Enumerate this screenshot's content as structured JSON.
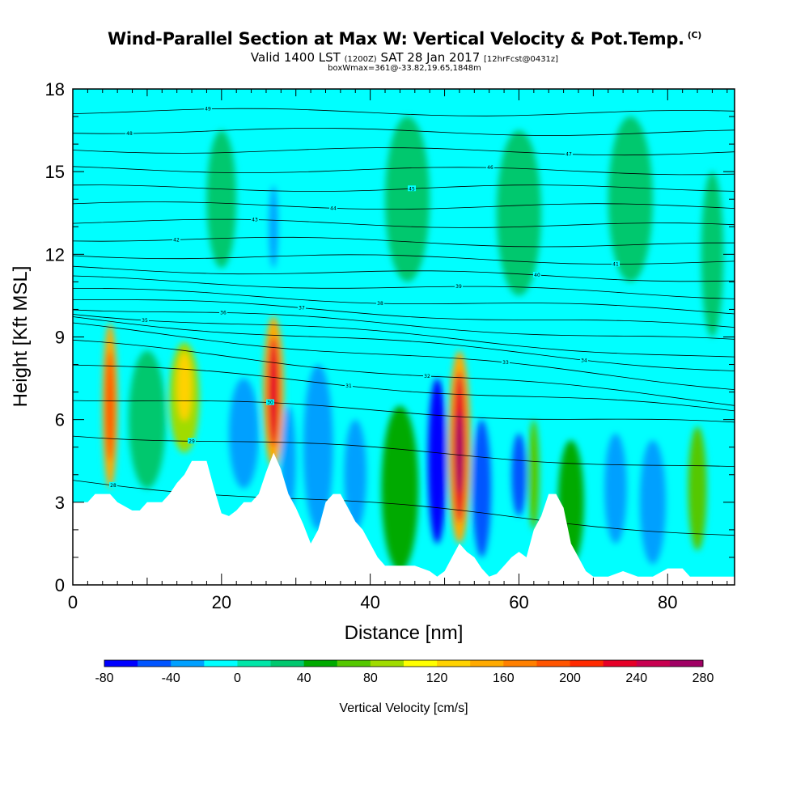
{
  "header": {
    "title": "Wind-Parallel Section at Max W: Vertical Velocity & Pot.Temp.",
    "copyright": "(C)",
    "valid_prefix": "Valid 1400 LST",
    "valid_z": "(1200Z)",
    "valid_date": "SAT 28 Jan 2017",
    "valid_fcst": "[12hrFcst@0431z]",
    "box_line": "boxWmax=361@-33.82,19.65,1848m"
  },
  "chart_data": {
    "type": "heatmap",
    "title": "Wind-Parallel Section at Max W: Vertical Velocity & Pot.Temp.",
    "xlabel": "Distance [nm]",
    "ylabel": "Height [Kft MSL]",
    "xlim": [
      0,
      89
    ],
    "ylim": [
      0,
      18
    ],
    "x_ticks": [
      "0",
      "20",
      "40",
      "60",
      "80"
    ],
    "y_ticks": [
      "0",
      "3",
      "6",
      "9",
      "12",
      "15",
      "18"
    ],
    "colorbar": {
      "label": "Vertical Velocity [cm/s]",
      "tick_labels": [
        "-80",
        "-40",
        "0",
        "40",
        "80",
        "120",
        "160",
        "200",
        "240",
        "280"
      ],
      "levels": [
        -80,
        -60,
        -40,
        -20,
        0,
        20,
        40,
        60,
        80,
        100,
        120,
        140,
        160,
        180,
        200,
        220,
        240,
        260,
        280
      ],
      "colors": [
        "#0000ff",
        "#0055ff",
        "#00a0ff",
        "#00ffff",
        "#00e6a8",
        "#00c86e",
        "#00aa00",
        "#55c800",
        "#a0dc00",
        "#ffff00",
        "#ffd200",
        "#ffaa00",
        "#ff8000",
        "#ff5500",
        "#ff2a00",
        "#e60028",
        "#c80050",
        "#a00064"
      ]
    },
    "background_color": "#00ffff",
    "terrain": [
      [
        0,
        3.0
      ],
      [
        2,
        3.0
      ],
      [
        3,
        3.3
      ],
      [
        5,
        3.3
      ],
      [
        6,
        3.0
      ],
      [
        8,
        2.7
      ],
      [
        9,
        2.7
      ],
      [
        10,
        3.0
      ],
      [
        12,
        3.0
      ],
      [
        13,
        3.3
      ],
      [
        14,
        3.7
      ],
      [
        15,
        4.0
      ],
      [
        16,
        4.5
      ],
      [
        18,
        4.5
      ],
      [
        19,
        3.5
      ],
      [
        20,
        2.6
      ],
      [
        21,
        2.5
      ],
      [
        22,
        2.7
      ],
      [
        23,
        3.0
      ],
      [
        24,
        3.0
      ],
      [
        25,
        3.3
      ],
      [
        26,
        4.1
      ],
      [
        27,
        4.8
      ],
      [
        28,
        4.2
      ],
      [
        29,
        3.3
      ],
      [
        30,
        2.8
      ],
      [
        31,
        2.2
      ],
      [
        32,
        1.5
      ],
      [
        33,
        2.0
      ],
      [
        34,
        3.0
      ],
      [
        35,
        3.3
      ],
      [
        36,
        3.3
      ],
      [
        37,
        2.8
      ],
      [
        38,
        2.3
      ],
      [
        39,
        2.0
      ],
      [
        40,
        1.5
      ],
      [
        41,
        1.0
      ],
      [
        42,
        0.7
      ],
      [
        44,
        0.7
      ],
      [
        46,
        0.7
      ],
      [
        47,
        0.6
      ],
      [
        48,
        0.5
      ],
      [
        49,
        0.3
      ],
      [
        50,
        0.5
      ],
      [
        51,
        1.0
      ],
      [
        52,
        1.5
      ],
      [
        53,
        1.2
      ],
      [
        54,
        1.0
      ],
      [
        55,
        0.6
      ],
      [
        56,
        0.3
      ],
      [
        57,
        0.4
      ],
      [
        58,
        0.7
      ],
      [
        59,
        1.0
      ],
      [
        60,
        1.2
      ],
      [
        61,
        1.0
      ],
      [
        62,
        2.0
      ],
      [
        63,
        2.5
      ],
      [
        64,
        3.3
      ],
      [
        65,
        3.3
      ],
      [
        66,
        2.8
      ],
      [
        67,
        1.5
      ],
      [
        68,
        1.0
      ],
      [
        69,
        0.5
      ],
      [
        70,
        0.3
      ],
      [
        72,
        0.3
      ],
      [
        74,
        0.5
      ],
      [
        76,
        0.3
      ],
      [
        78,
        0.3
      ],
      [
        80,
        0.6
      ],
      [
        82,
        0.6
      ],
      [
        83,
        0.3
      ],
      [
        86,
        0.3
      ],
      [
        89,
        0.3
      ]
    ],
    "cells": [
      {
        "x": 5,
        "y": 6.5,
        "w": 2.0,
        "h": 6.0,
        "value": 140
      },
      {
        "x": 5,
        "y": 6.5,
        "w": 1.2,
        "h": 4.0,
        "value": 180
      },
      {
        "x": 15,
        "y": 6.8,
        "w": 4.0,
        "h": 4.0,
        "value": 80
      },
      {
        "x": 15,
        "y": 7.2,
        "w": 2.0,
        "h": 2.5,
        "value": 120
      },
      {
        "x": 27,
        "y": 7.0,
        "w": 2.8,
        "h": 5.5,
        "value": 140
      },
      {
        "x": 27,
        "y": 7.0,
        "w": 1.6,
        "h": 4.0,
        "value": 230
      },
      {
        "x": 52,
        "y": 5.0,
        "w": 3.0,
        "h": 7.0,
        "value": 150
      },
      {
        "x": 52,
        "y": 5.0,
        "w": 1.8,
        "h": 5.5,
        "value": 230
      },
      {
        "x": 52,
        "y": 4.8,
        "w": 1.0,
        "h": 3.0,
        "value": 260
      },
      {
        "x": 49,
        "y": 4.5,
        "w": 2.5,
        "h": 6.0,
        "value": -80
      },
      {
        "x": 55,
        "y": 3.5,
        "w": 2.5,
        "h": 5.0,
        "value": -60
      },
      {
        "x": 44,
        "y": 3.5,
        "w": 5.0,
        "h": 6.0,
        "value": 40
      },
      {
        "x": 38,
        "y": 4.0,
        "w": 3.0,
        "h": 4.0,
        "value": -40
      },
      {
        "x": 33,
        "y": 5.0,
        "w": 4.0,
        "h": 6.0,
        "value": -30
      },
      {
        "x": 29,
        "y": 4.5,
        "w": 2.0,
        "h": 4.0,
        "value": -40
      },
      {
        "x": 23,
        "y": 5.5,
        "w": 4.0,
        "h": 4.0,
        "value": -30
      },
      {
        "x": 10,
        "y": 6.0,
        "w": 5.0,
        "h": 5.0,
        "value": 30
      },
      {
        "x": 60,
        "y": 4.0,
        "w": 2.0,
        "h": 3.0,
        "value": -50
      },
      {
        "x": 62,
        "y": 4.0,
        "w": 1.5,
        "h": 4.0,
        "value": 60
      },
      {
        "x": 67,
        "y": 3.0,
        "w": 3.5,
        "h": 4.5,
        "value": 40
      },
      {
        "x": 73,
        "y": 3.5,
        "w": 3.0,
        "h": 4.0,
        "value": -40
      },
      {
        "x": 78,
        "y": 3.0,
        "w": 3.5,
        "h": 4.5,
        "value": -30
      },
      {
        "x": 84,
        "y": 3.5,
        "w": 2.5,
        "h": 4.5,
        "value": 60
      },
      {
        "x": 27,
        "y": 13.0,
        "w": 1.2,
        "h": 3.0,
        "value": -30
      },
      {
        "x": 20,
        "y": 14.0,
        "w": 4.0,
        "h": 5.0,
        "value": 20
      },
      {
        "x": 45,
        "y": 14.0,
        "w": 6.0,
        "h": 6.0,
        "value": 20
      },
      {
        "x": 60,
        "y": 13.5,
        "w": 6.0,
        "h": 6.0,
        "value": 20
      },
      {
        "x": 75,
        "y": 14.0,
        "w": 6.0,
        "h": 6.0,
        "value": 20
      },
      {
        "x": 86,
        "y": 12.0,
        "w": 3.0,
        "h": 6.0,
        "value": 20
      }
    ],
    "theta_contours": [
      {
        "label": "28",
        "y_left": 3.8,
        "y_right": 1.8
      },
      {
        "label": "29",
        "y_left": 5.5,
        "y_right": 4.2
      },
      {
        "label": "30",
        "y_left": 6.8,
        "y_right": 5.8
      },
      {
        "label": "31",
        "y_left": 8.0,
        "y_right": 6.3
      },
      {
        "label": "32",
        "y_left": 8.8,
        "y_right": 6.6
      },
      {
        "label": "33",
        "y_left": 9.4,
        "y_right": 7.2
      },
      {
        "label": "34",
        "y_left": 9.7,
        "y_right": 7.8
      },
      {
        "label": "35",
        "y_left": 9.9,
        "y_right": 8.2
      },
      {
        "label": "36",
        "y_left": 10.1,
        "y_right": 8.8
      },
      {
        "label": "37",
        "y_left": 10.4,
        "y_right": 9.3
      },
      {
        "label": "38",
        "y_left": 10.7,
        "y_right": 9.9
      },
      {
        "label": "39",
        "y_left": 11.1,
        "y_right": 10.5
      },
      {
        "label": "40",
        "y_left": 11.5,
        "y_right": 11.1
      },
      {
        "label": "41",
        "y_left": 12.0,
        "y_right": 11.7
      },
      {
        "label": "42",
        "y_left": 12.6,
        "y_right": 12.3
      },
      {
        "label": "43",
        "y_left": 13.2,
        "y_right": 13.0
      },
      {
        "label": "44",
        "y_left": 13.8,
        "y_right": 13.7
      },
      {
        "label": "45",
        "y_left": 14.4,
        "y_right": 14.4
      },
      {
        "label": "46",
        "y_left": 15.1,
        "y_right": 15.0
      },
      {
        "label": "47",
        "y_left": 15.8,
        "y_right": 15.7
      },
      {
        "label": "48",
        "y_left": 16.5,
        "y_right": 16.4
      },
      {
        "label": "49",
        "y_left": 17.2,
        "y_right": 17.1
      }
    ]
  }
}
